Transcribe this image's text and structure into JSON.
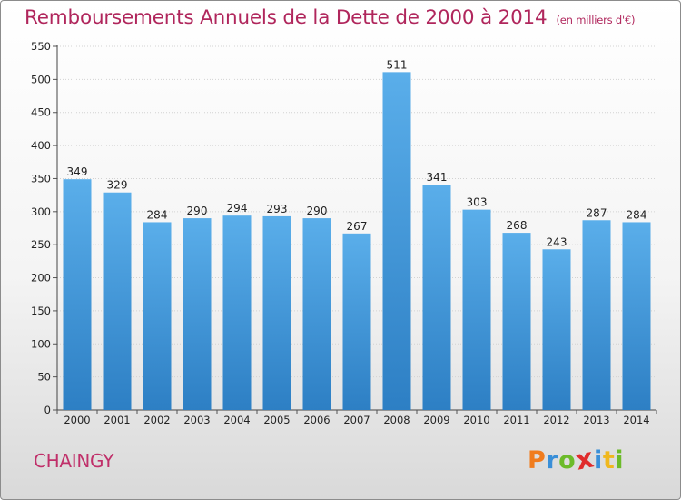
{
  "chart_data": {
    "type": "bar",
    "title": "Remboursements Annuels de la Dette de 2000 à 2014",
    "subtitle": "(en milliers d'€)",
    "categories": [
      "2000",
      "2001",
      "2002",
      "2003",
      "2004",
      "2005",
      "2006",
      "2007",
      "2008",
      "2009",
      "2010",
      "2011",
      "2012",
      "2013",
      "2014"
    ],
    "values": [
      349,
      329,
      284,
      290,
      294,
      293,
      290,
      267,
      511,
      341,
      303,
      268,
      243,
      287,
      284
    ],
    "ylim": [
      0,
      550
    ],
    "yticks": [
      0,
      50,
      100,
      150,
      200,
      250,
      300,
      350,
      400,
      450,
      500,
      550
    ],
    "grid": true,
    "bar_color": "#4d9ede"
  },
  "footer": {
    "commune": "CHAINGY",
    "logo_letters": [
      "P",
      "r",
      "o",
      "x",
      "i",
      "t",
      "i"
    ],
    "logo_colors": [
      "#f07c1e",
      "#3a8fd8",
      "#6cbb2a",
      "#e02c2c",
      "#3a8fd8",
      "#f0b81e",
      "#6cbb2a"
    ]
  }
}
